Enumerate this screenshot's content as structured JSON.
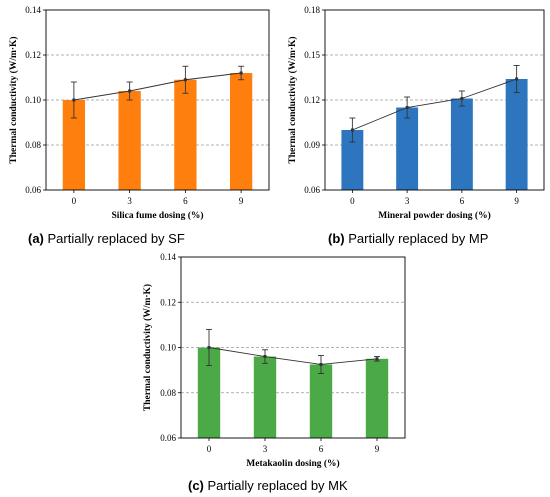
{
  "figure": {
    "panels": [
      {
        "caption_letter": "(a)",
        "caption_text": " Partially replaced by SF",
        "color": "#FF7F0E"
      },
      {
        "caption_letter": "(b)",
        "caption_text": " Partially replaced by MP",
        "color": "#2E75C0"
      },
      {
        "caption_letter": "(c)",
        "caption_text": " Partially replaced by MK",
        "color": "#4BAA47"
      }
    ]
  },
  "chart_data": [
    {
      "type": "bar",
      "categories": [
        "0",
        "3",
        "6",
        "9"
      ],
      "values": [
        0.1,
        0.104,
        0.109,
        0.112
      ],
      "errors": [
        0.008,
        0.004,
        0.006,
        0.003
      ],
      "trend_line": true,
      "xlabel": "Silica fume dosing (%)",
      "ylabel": "Thermal conductivity (W/m·K)",
      "ylim": [
        0.06,
        0.14
      ],
      "yticks": [
        "0.06",
        "0.08",
        "0.10",
        "0.12",
        "0.14"
      ],
      "grid": "horizontal dashed"
    },
    {
      "type": "bar",
      "categories": [
        "0",
        "3",
        "6",
        "9"
      ],
      "values": [
        0.1,
        0.115,
        0.121,
        0.134
      ],
      "errors": [
        0.008,
        0.007,
        0.005,
        0.009
      ],
      "trend_line": true,
      "xlabel": "Mineral powder dosing (%)",
      "ylabel": "Thermal conductivity (W/m·K)",
      "ylim": [
        0.06,
        0.18
      ],
      "yticks": [
        "0.06",
        "0.09",
        "0.12",
        "0.15",
        "0.18"
      ],
      "grid": "horizontal dashed"
    },
    {
      "type": "bar",
      "categories": [
        "0",
        "3",
        "6",
        "9"
      ],
      "values": [
        0.1,
        0.096,
        0.0925,
        0.095
      ],
      "errors": [
        0.008,
        0.003,
        0.004,
        0.001
      ],
      "trend_line": true,
      "xlabel": "Metakaolin dosing (%)",
      "ylabel": "Thermal conductivity (W/m·K)",
      "ylim": [
        0.06,
        0.14
      ],
      "yticks": [
        "0.06",
        "0.08",
        "0.10",
        "0.12",
        "0.14"
      ],
      "grid": "horizontal dashed"
    }
  ]
}
